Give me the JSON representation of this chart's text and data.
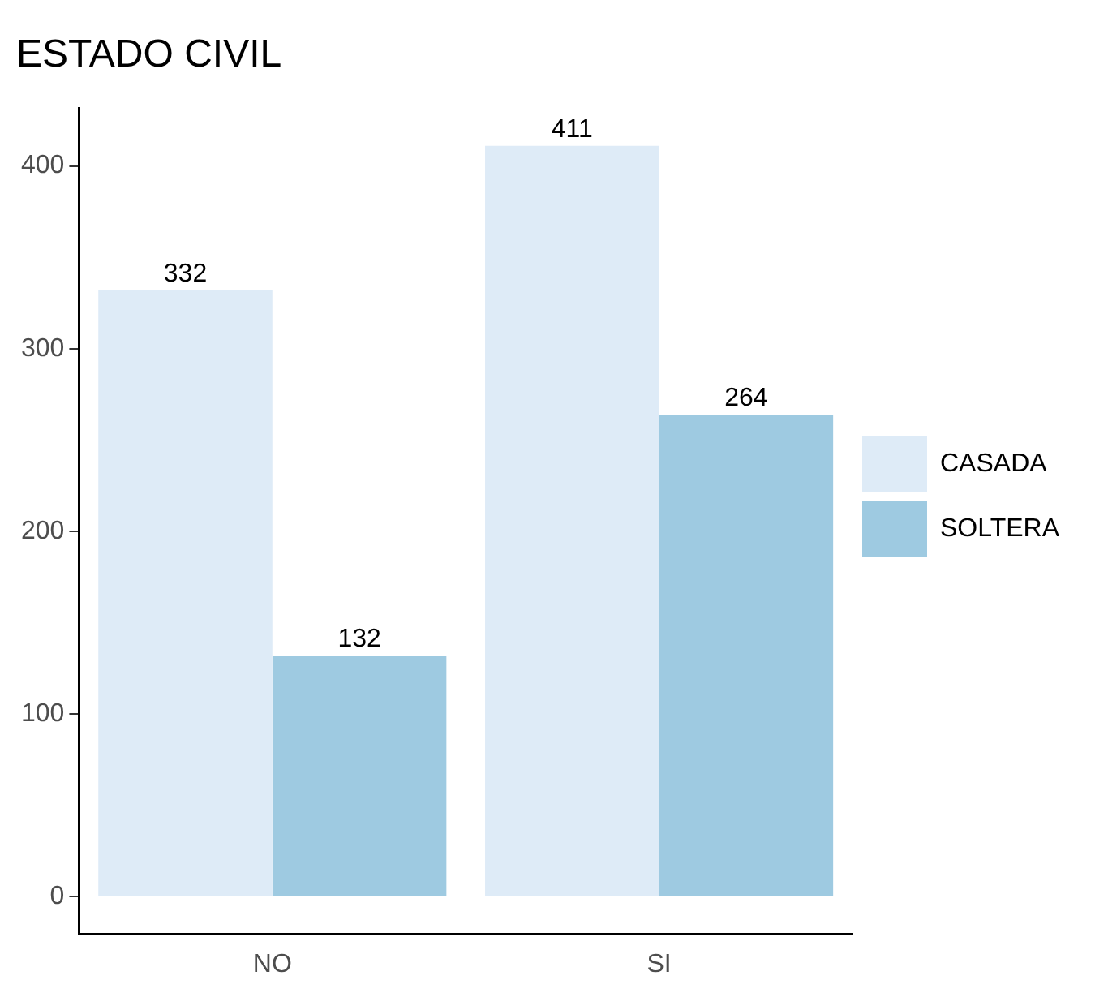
{
  "chart_data": {
    "type": "bar",
    "title": "ESTADO CIVIL",
    "categories": [
      "NO",
      "SI"
    ],
    "series": [
      {
        "name": "CASADA",
        "color": "#deebf7",
        "values": [
          332,
          411
        ]
      },
      {
        "name": "SOLTERA",
        "color": "#9ecae1",
        "values": [
          132,
          264
        ]
      }
    ],
    "ylim": [
      -20.55,
      431.55
    ],
    "yticks": [
      0,
      100,
      200,
      300,
      400
    ],
    "grid": false,
    "legend": "right",
    "data_labels": true
  }
}
